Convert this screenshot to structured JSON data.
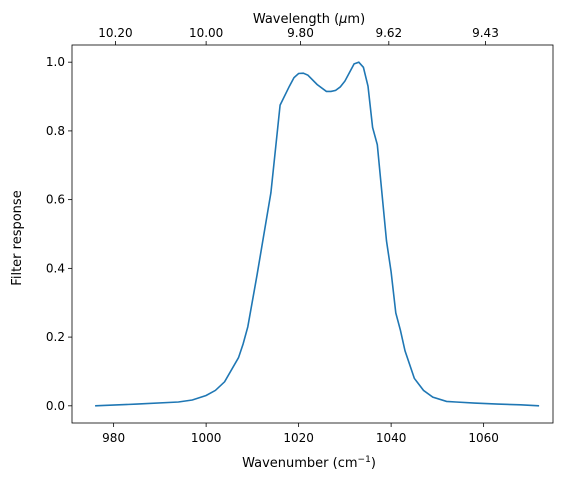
{
  "chart_data": {
    "type": "line",
    "xlabel": "Wavenumber (cm",
    "xlabel_sup": "−1",
    "xlabel_close": ")",
    "ylabel": "Filter response",
    "top_xlabel_prefix": "Wavelength (",
    "top_xlabel_unit": "μ",
    "top_xlabel_suffix": "m)",
    "xlim": [
      971,
      1075
    ],
    "ylim": [
      -0.05,
      1.05
    ],
    "xticks": [
      980,
      1000,
      1020,
      1040,
      1060
    ],
    "yticks": [
      0.0,
      0.2,
      0.4,
      0.6,
      0.8,
      1.0
    ],
    "top_ticks": [
      {
        "label": "10.20",
        "wavenumber": 980.4
      },
      {
        "label": "10.00",
        "wavenumber": 1000.0
      },
      {
        "label": "9.80",
        "wavenumber": 1020.4
      },
      {
        "label": "9.62",
        "wavenumber": 1039.5
      },
      {
        "label": "9.43",
        "wavenumber": 1060.4
      }
    ],
    "line_color": "#1f77b4",
    "series": [
      {
        "x": [
          976,
          985,
          994,
          997,
          1000,
          1002,
          1004,
          1007,
          1008,
          1009,
          1011,
          1014,
          1016,
          1018,
          1019,
          1020,
          1021,
          1022,
          1024,
          1026,
          1027,
          1028,
          1029,
          1030,
          1031,
          1032,
          1033,
          1034,
          1035,
          1036,
          1037,
          1038,
          1039,
          1040,
          1041,
          1042,
          1043,
          1045,
          1047,
          1049,
          1052,
          1054,
          1058,
          1063,
          1068,
          1072
        ],
        "y": [
          0.0,
          0.005,
          0.011,
          0.017,
          0.03,
          0.045,
          0.07,
          0.14,
          0.18,
          0.23,
          0.38,
          0.62,
          0.875,
          0.93,
          0.955,
          0.967,
          0.968,
          0.962,
          0.935,
          0.915,
          0.915,
          0.918,
          0.928,
          0.945,
          0.97,
          0.995,
          1.0,
          0.985,
          0.93,
          0.81,
          0.76,
          0.62,
          0.48,
          0.39,
          0.27,
          0.22,
          0.16,
          0.08,
          0.045,
          0.025,
          0.013,
          0.011,
          0.008,
          0.005,
          0.003,
          0.0
        ]
      }
    ]
  }
}
